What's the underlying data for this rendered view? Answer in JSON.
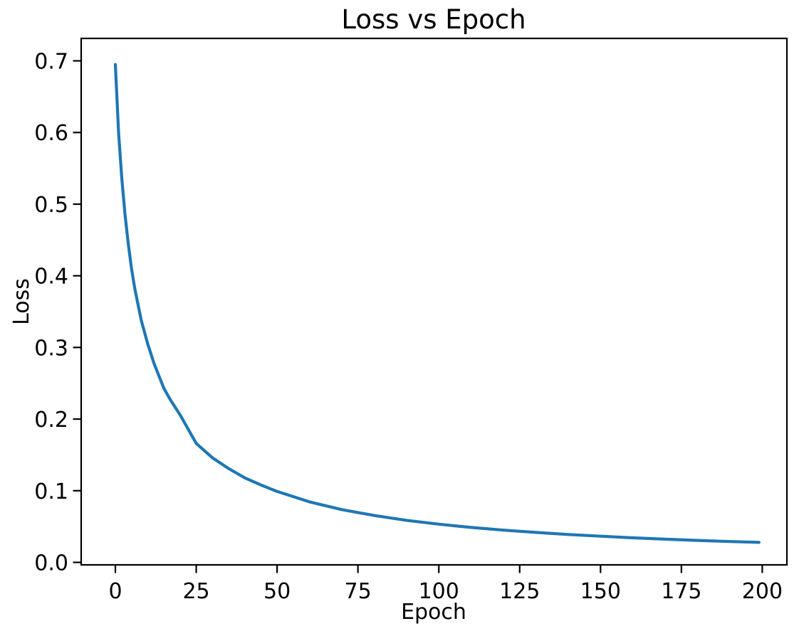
{
  "figure": {
    "background_color": "#ffffff",
    "text_color": "#000000"
  },
  "chart_data": {
    "type": "line",
    "title": "Loss vs Epoch",
    "xlabel": "Epoch",
    "ylabel": "Loss",
    "grid": false,
    "legend": null,
    "line_color": "#1f77b4",
    "xlim": [
      -10.6,
      207.5
    ],
    "ylim": [
      -0.004,
      0.731
    ],
    "x_ticks": [
      0,
      25,
      50,
      75,
      100,
      125,
      150,
      175,
      200
    ],
    "x_tick_labels": [
      "0",
      "25",
      "50",
      "75",
      "100",
      "125",
      "150",
      "175",
      "200"
    ],
    "y_ticks": [
      0.0,
      0.1,
      0.2,
      0.3,
      0.4,
      0.5,
      0.6,
      0.7
    ],
    "y_tick_labels": [
      "0.0",
      "0.1",
      "0.2",
      "0.3",
      "0.4",
      "0.5",
      "0.6",
      "0.7"
    ],
    "series": [
      {
        "name": "loss",
        "epochs": [
          0,
          1,
          2,
          3,
          4,
          5,
          6,
          8,
          10,
          12,
          15,
          17,
          20,
          25,
          30,
          35,
          40,
          45,
          50,
          60,
          70,
          80,
          90,
          100,
          110,
          120,
          130,
          140,
          150,
          160,
          170,
          180,
          190,
          199
        ],
        "loss": [
          0.695,
          0.6,
          0.535,
          0.485,
          0.444,
          0.41,
          0.382,
          0.338,
          0.305,
          0.277,
          0.243,
          0.227,
          0.206,
          0.166,
          0.146,
          0.131,
          0.118,
          0.108,
          0.099,
          0.0845,
          0.0737,
          0.0654,
          0.0587,
          0.0533,
          0.0488,
          0.045,
          0.0418,
          0.0389,
          0.0365,
          0.0343,
          0.0324,
          0.0307,
          0.0291,
          0.0279
        ]
      }
    ]
  }
}
